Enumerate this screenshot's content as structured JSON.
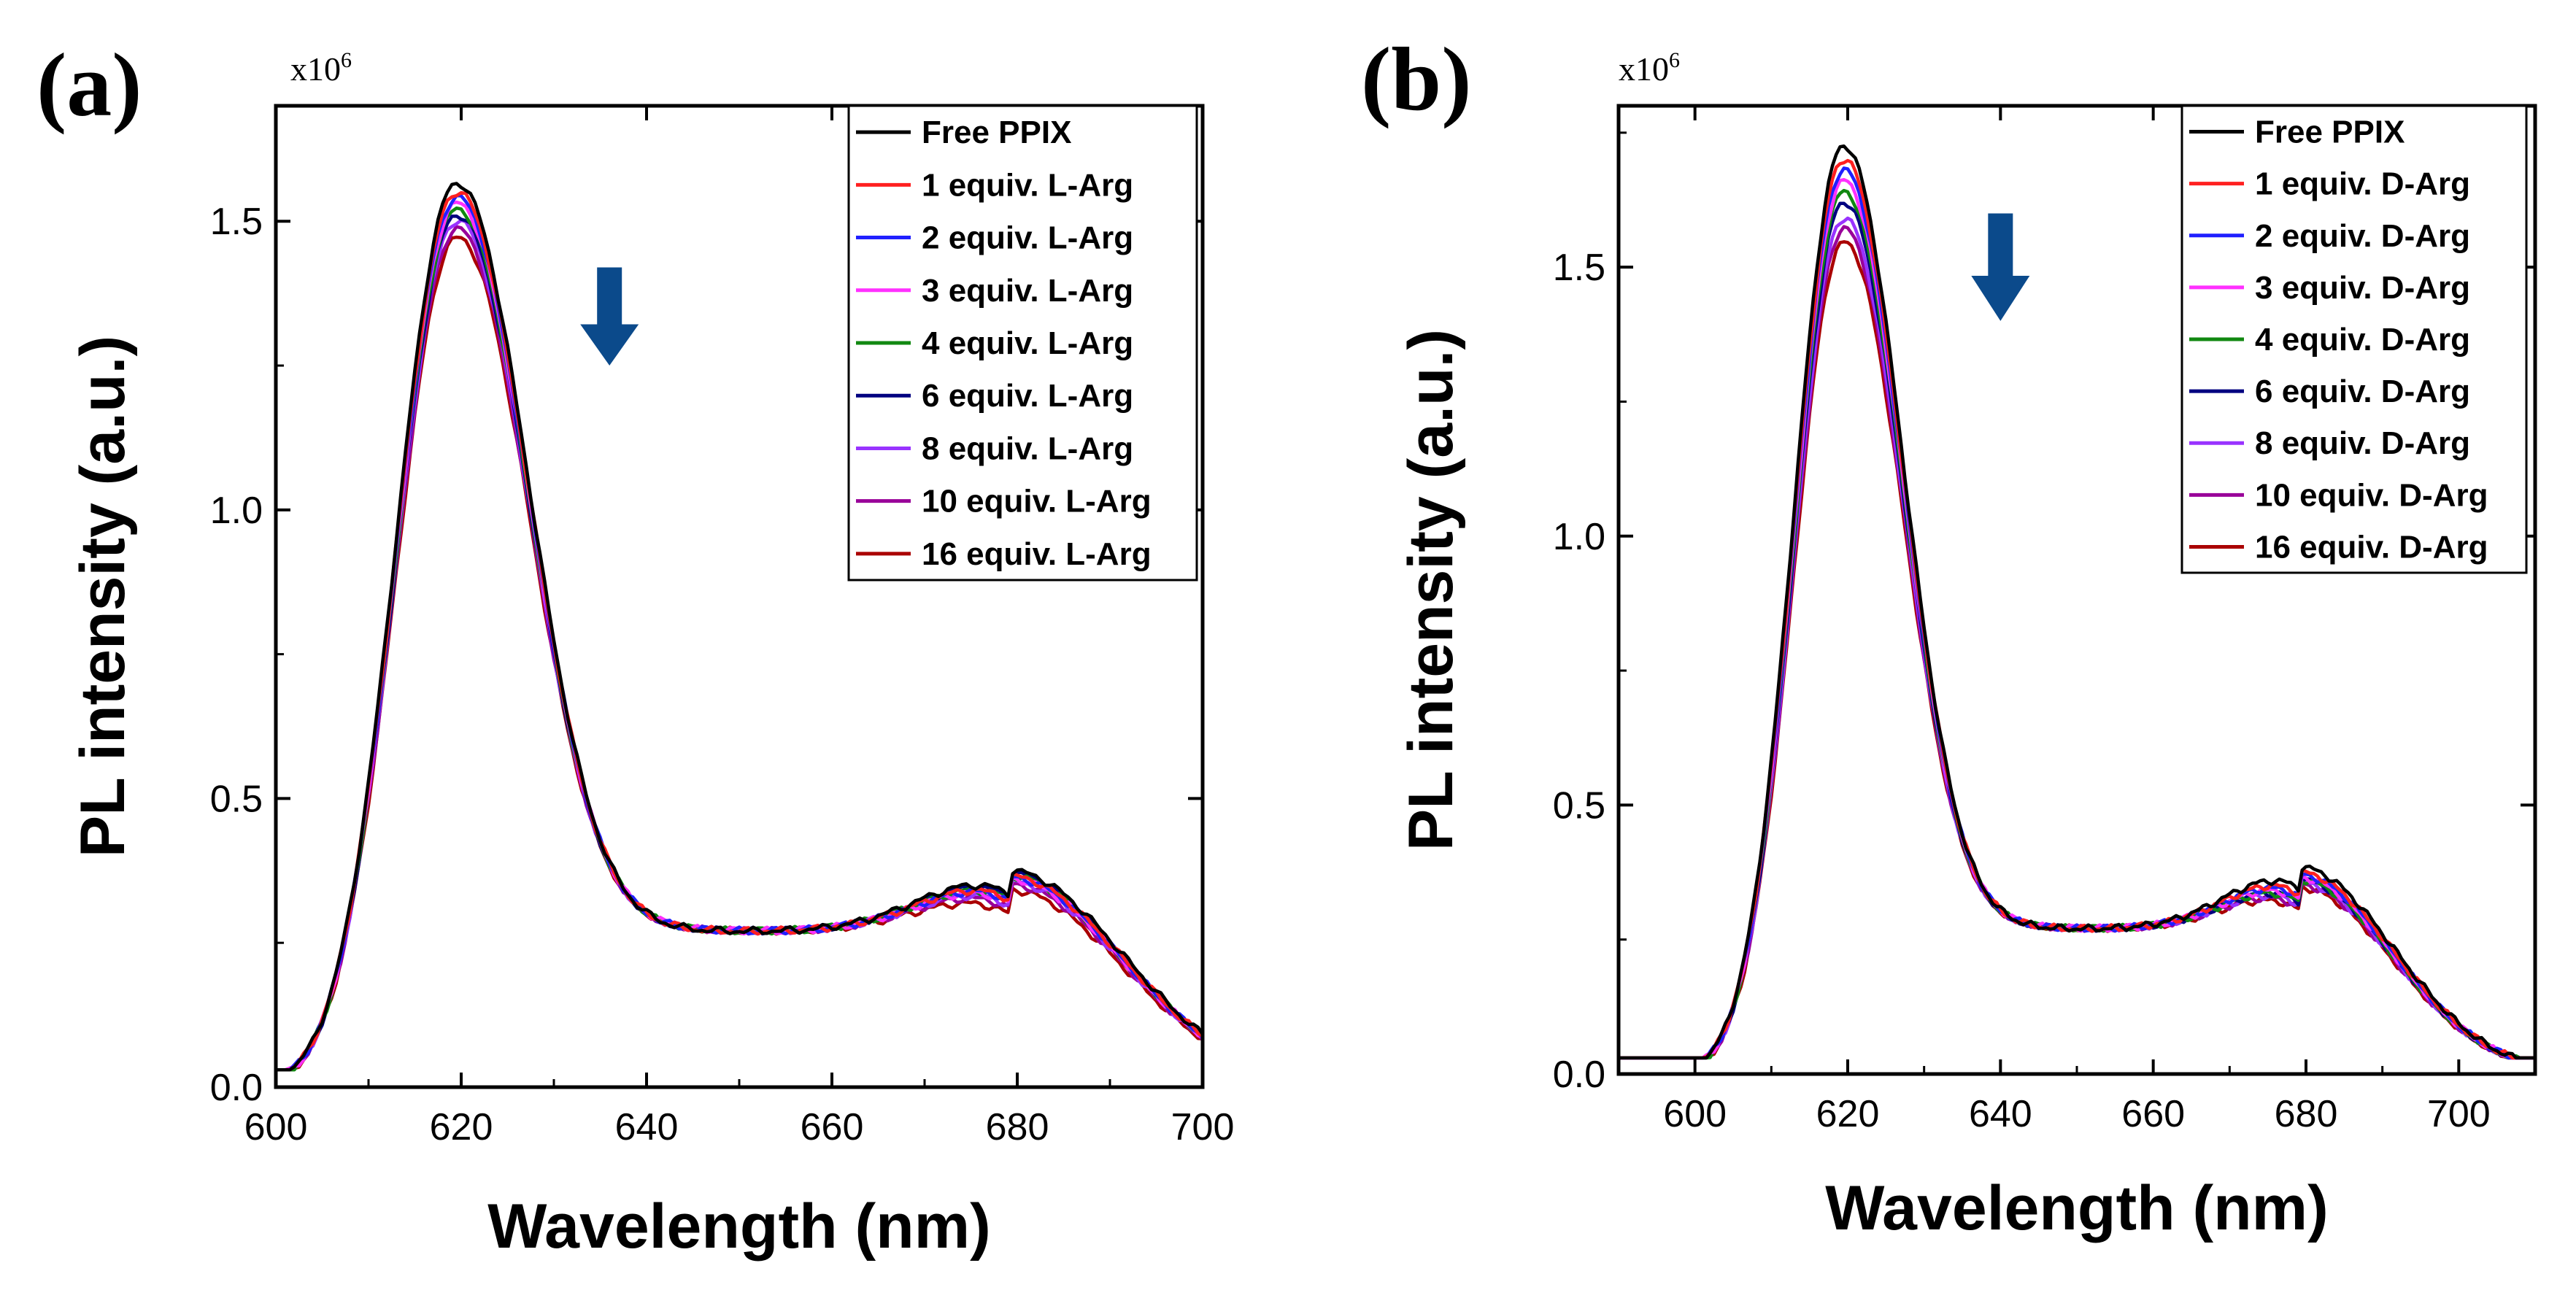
{
  "chart_data": [
    {
      "panel": "(a)",
      "type": "line",
      "xlabel": "Wavelength (nm)",
      "ylabel": "PL intensity (a.u.)",
      "y_multiplier": "x10",
      "y_multiplier_exp": "6",
      "xlim": [
        600,
        700
      ],
      "ylim": [
        0,
        1.7
      ],
      "xticks": [
        600,
        620,
        640,
        660,
        680,
        700
      ],
      "yticks": [
        0.0,
        0.5,
        1.0,
        1.5
      ],
      "xtick_labels": [
        "600",
        "620",
        "640",
        "660",
        "680",
        "700"
      ],
      "ytick_labels": [
        "0.0",
        "0.5",
        "1.0",
        "1.5"
      ],
      "annotation": "down-arrow (intensity decreases with increasing Arg)",
      "annotation_x": 636,
      "annotation_y": [
        1.42,
        1.25
      ],
      "legend_position": "top-right",
      "series": [
        {
          "name": "Free PPIX",
          "color": "#000000",
          "peak": 1.505,
          "shoulder": 0.395
        },
        {
          "name": "1 equiv. L-Arg",
          "color": "#ff2020",
          "peak": 1.49,
          "shoulder": 0.385
        },
        {
          "name": "2 equiv. L-Arg",
          "color": "#2020ff",
          "peak": 1.48,
          "shoulder": 0.383
        },
        {
          "name": "3 equiv. L-Arg",
          "color": "#ff30ff",
          "peak": 1.47,
          "shoulder": 0.38
        },
        {
          "name": "4 equiv. L-Arg",
          "color": "#118811",
          "peak": 1.46,
          "shoulder": 0.385
        },
        {
          "name": "6 equiv. L-Arg",
          "color": "#000080",
          "peak": 1.45,
          "shoulder": 0.39
        },
        {
          "name": "8 equiv. L-Arg",
          "color": "#9933ff",
          "peak": 1.44,
          "shoulder": 0.375
        },
        {
          "name": "10 equiv. L-Arg",
          "color": "#990099",
          "peak": 1.425,
          "shoulder": 0.37
        },
        {
          "name": "16 equiv. L-Arg",
          "color": "#aa0000",
          "peak": 1.41,
          "shoulder": 0.36
        }
      ]
    },
    {
      "panel": "(b)",
      "type": "line",
      "xlabel": "Wavelength (nm)",
      "ylabel": "PL intensity (a.u.)",
      "y_multiplier": "x10",
      "y_multiplier_exp": "6",
      "xlim": [
        590,
        710
      ],
      "ylim": [
        0,
        1.8
      ],
      "xticks": [
        600,
        620,
        640,
        660,
        680,
        700
      ],
      "yticks": [
        0.0,
        0.5,
        1.0,
        1.5
      ],
      "xtick_labels": [
        "600",
        "620",
        "640",
        "660",
        "680",
        "700"
      ],
      "ytick_labels": [
        "0.0",
        "0.5",
        "1.0",
        "1.5"
      ],
      "annotation": "down-arrow (intensity decreases with increasing Arg)",
      "annotation_x": 640,
      "annotation_y": [
        1.6,
        1.4
      ],
      "legend_position": "top-right",
      "series": [
        {
          "name": "Free PPIX",
          "color": "#000000",
          "peak": 1.665,
          "shoulder": 0.405
        },
        {
          "name": "1 equiv. D-Arg",
          "color": "#ff2020",
          "peak": 1.64,
          "shoulder": 0.395
        },
        {
          "name": "2 equiv. D-Arg",
          "color": "#2020ff",
          "peak": 1.62,
          "shoulder": 0.39
        },
        {
          "name": "3 equiv. D-Arg",
          "color": "#ff30ff",
          "peak": 1.6,
          "shoulder": 0.385
        },
        {
          "name": "4 equiv. D-Arg",
          "color": "#118811",
          "peak": 1.58,
          "shoulder": 0.38
        },
        {
          "name": "6 equiv. D-Arg",
          "color": "#000080",
          "peak": 1.56,
          "shoulder": 0.38
        },
        {
          "name": "8 equiv. D-Arg",
          "color": "#9933ff",
          "peak": 1.53,
          "shoulder": 0.375
        },
        {
          "name": "10 equiv. D-Arg",
          "color": "#990099",
          "peak": 1.51,
          "shoulder": 0.37
        },
        {
          "name": "16 equiv. D-Arg",
          "color": "#aa0000",
          "peak": 1.485,
          "shoulder": 0.365
        }
      ]
    }
  ],
  "arrow_color": "#0b4a8b"
}
